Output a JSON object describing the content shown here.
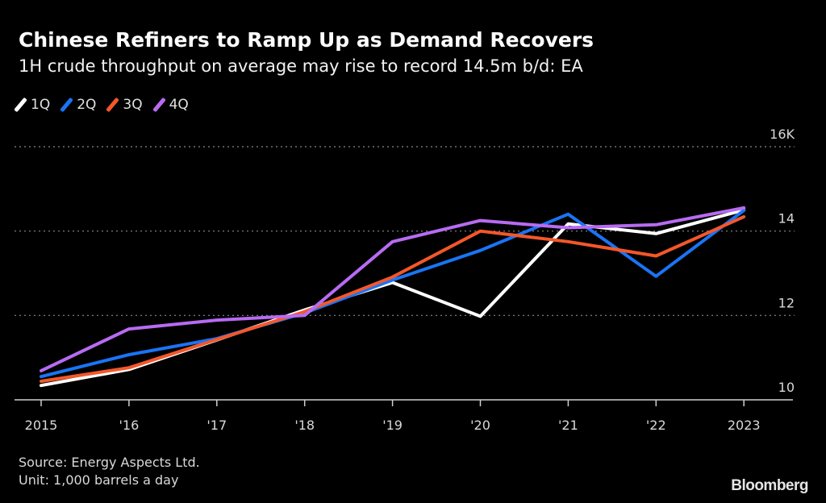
{
  "header": {
    "title": "Chinese Refiners to Ramp Up as Demand Recovers",
    "subtitle": "1H crude throughput on average may rise to record 14.5m b/d: EA"
  },
  "footer": {
    "source": "Source: Energy Aspects Ltd.",
    "unit": "Unit: 1,000 barrels a day",
    "brand": "Bloomberg"
  },
  "chart_data": {
    "type": "line",
    "title": "Chinese Refiners to Ramp Up as Demand Recovers",
    "subtitle": "1H crude throughput on average may rise to record 14.5m b/d: EA",
    "xlabel": "",
    "ylabel": "",
    "x": [
      "2015",
      "'16",
      "'17",
      "'18",
      "'19",
      "'20",
      "'21",
      "'22",
      "2023"
    ],
    "ylim": [
      10,
      16
    ],
    "yticks": [
      10,
      12,
      14,
      16
    ],
    "ytick_labels": [
      "10",
      "12",
      "14",
      "16K"
    ],
    "grid": "horizontal dotted",
    "legend": "top-left",
    "series": [
      {
        "name": "1Q",
        "color": "#ffffff",
        "values": [
          10.34,
          10.72,
          11.42,
          12.13,
          12.78,
          11.98,
          14.17,
          13.94,
          14.5
        ]
      },
      {
        "name": "2Q",
        "color": "#1a74f5",
        "values": [
          10.55,
          11.07,
          11.45,
          12.06,
          12.84,
          13.54,
          14.4,
          12.93,
          14.49
        ]
      },
      {
        "name": "3Q",
        "color": "#f4572a",
        "values": [
          10.44,
          10.76,
          11.43,
          12.09,
          12.91,
          14.0,
          13.75,
          13.41,
          14.34
        ]
      },
      {
        "name": "4Q",
        "color": "#b86bf2",
        "values": [
          10.69,
          11.68,
          11.89,
          12.0,
          13.75,
          14.25,
          14.08,
          14.15,
          14.55
        ]
      }
    ]
  }
}
